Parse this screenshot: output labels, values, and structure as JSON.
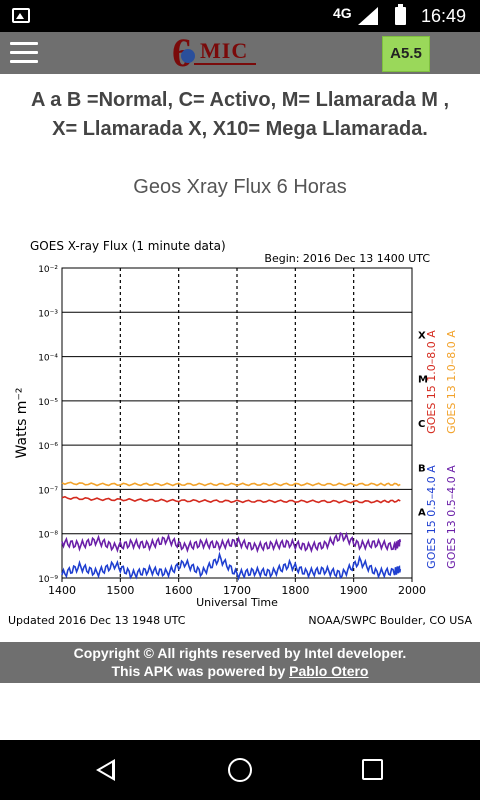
{
  "status_bar": {
    "network": "4G",
    "time": "16:49"
  },
  "app_bar": {
    "logo_digit": "6",
    "logo_text": "MIC",
    "level_badge": {
      "text": "A5.5",
      "color": "#9ad85a"
    }
  },
  "legend_text_line1": "A a B =Normal, C= Activo, M= Llamarada M ,",
  "legend_text_line2": "X= Llamarada X, X10= Mega Llamarada.",
  "section_title": "Geos Xray Flux 6 Horas",
  "chart_data": {
    "type": "line",
    "title": "GOES X-ray Flux (1 minute data)",
    "begin_label": "Begin: 2016 Dec 13 1400 UTC",
    "xlabel": "Universal Time",
    "ylabel": "Watts m⁻²",
    "x_ticks": [
      "1400",
      "1500",
      "1600",
      "1700",
      "1800",
      "1900",
      "2000"
    ],
    "xlim": [
      1400,
      2000
    ],
    "y_scale": "log",
    "ylim": [
      1e-09,
      0.01
    ],
    "y_ticks": [
      "10⁻²",
      "10⁻³",
      "10⁻⁴",
      "10⁻⁵",
      "10⁻⁶",
      "10⁻⁷",
      "10⁻⁸",
      "10⁻⁹"
    ],
    "y_exponents": [
      -2,
      -3,
      -4,
      -5,
      -6,
      -7,
      -8,
      -9
    ],
    "flare_classes": [
      {
        "label": "X",
        "exp": -3.5
      },
      {
        "label": "M",
        "exp": -4.5
      },
      {
        "label": "C",
        "exp": -5.5
      },
      {
        "label": "B",
        "exp": -6.5
      },
      {
        "label": "A",
        "exp": -7.5
      }
    ],
    "grid": true,
    "legend_placement": "right, vertical",
    "series": [
      {
        "name": "GOES 15 1.0–8.0 A",
        "color": "#d42a1e",
        "legend_group": "long",
        "x": [
          1400,
          1460,
          1520,
          1580,
          1640,
          1700,
          1760,
          1820,
          1880,
          1940,
          1980
        ],
        "values": [
          6.5e-08,
          6e-08,
          5.8e-08,
          5.6e-08,
          5.5e-08,
          5.4e-08,
          5.4e-08,
          5.4e-08,
          5.3e-08,
          5.3e-08,
          5.5e-08
        ]
      },
      {
        "name": "GOES 13 1.0–8.0 A",
        "color": "#f2a22a",
        "legend_group": "long",
        "x": [
          1400,
          1460,
          1520,
          1580,
          1640,
          1700,
          1760,
          1820,
          1880,
          1940,
          1980
        ],
        "values": [
          1.4e-07,
          1.3e-07,
          1.3e-07,
          1.3e-07,
          1.3e-07,
          1.3e-07,
          1.3e-07,
          1.3e-07,
          1.3e-07,
          1.3e-07,
          1.3e-07
        ]
      },
      {
        "name": "GOES 15 0.5–4.0 A",
        "color": "#1f3fd0",
        "legend_group": "short",
        "x": [
          1400,
          1430,
          1460,
          1490,
          1520,
          1550,
          1580,
          1610,
          1640,
          1670,
          1700,
          1730,
          1760,
          1790,
          1820,
          1850,
          1880,
          1910,
          1940,
          1970,
          1980
        ],
        "values": [
          1.2e-09,
          1.8e-09,
          1.3e-09,
          2e-09,
          1.2e-09,
          1.5e-09,
          1.3e-09,
          2.2e-09,
          1.3e-09,
          2.8e-09,
          1.2e-09,
          1.4e-09,
          1.3e-09,
          2e-09,
          1.3e-09,
          1.5e-09,
          1.2e-09,
          2.4e-09,
          1.3e-09,
          1.4e-09,
          1.6e-09
        ]
      },
      {
        "name": "GOES 13 0.5–4.0 A",
        "color": "#6a1fa8",
        "legend_group": "short",
        "x": [
          1400,
          1430,
          1460,
          1490,
          1520,
          1550,
          1580,
          1610,
          1640,
          1670,
          1700,
          1730,
          1760,
          1790,
          1820,
          1850,
          1880,
          1910,
          1940,
          1970,
          1980
        ],
        "values": [
          6.5e-09,
          5.5e-09,
          7e-09,
          5e-09,
          6e-09,
          5.5e-09,
          7.5e-09,
          5e-09,
          6e-09,
          5.5e-09,
          6.5e-09,
          5e-09,
          5.5e-09,
          6e-09,
          5e-09,
          5.5e-09,
          9e-09,
          5.5e-09,
          6e-09,
          5e-09,
          6.5e-09
        ]
      }
    ],
    "updated_label": "Updated 2016 Dec 13 1948 UTC",
    "source_label": "NOAA/SWPC Boulder, CO USA"
  },
  "footer": {
    "line1": "Copyright © All rights reserved by Intel developer.",
    "line2_prefix": "This APK was powered by ",
    "line2_author": "Pablo Otero"
  }
}
